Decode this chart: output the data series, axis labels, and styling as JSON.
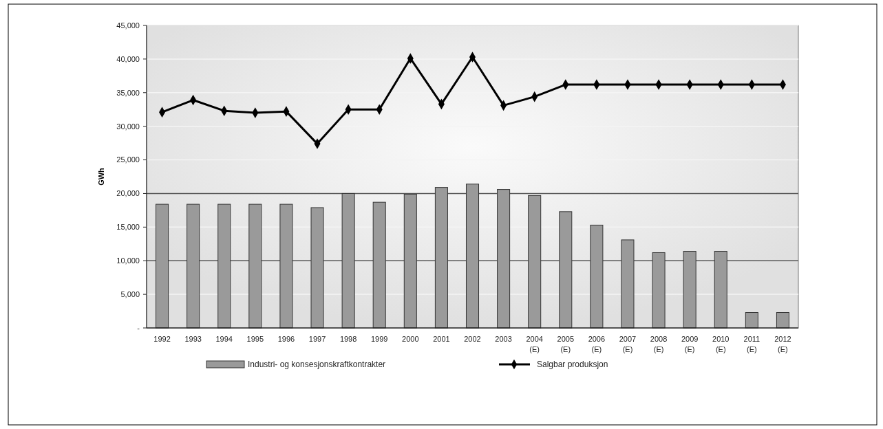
{
  "chart_data": {
    "type": "bar",
    "ylabel": "GWh",
    "categories": [
      "1992",
      "1993",
      "1994",
      "1995",
      "1996",
      "1997",
      "1998",
      "1999",
      "2000",
      "2001",
      "2002",
      "2003",
      "2004\n(E)",
      "2005\n(E)",
      "2006\n(E)",
      "2007\n(E)",
      "2008\n(E)",
      "2009\n(E)",
      "2010\n(E)",
      "2011\n(E)",
      "2012\n(E)"
    ],
    "series": [
      {
        "name": "Industri- og konsesjonskraftkontrakter",
        "color": "#9a9a9a",
        "values": [
          18400,
          18400,
          18400,
          18400,
          18400,
          17900,
          20000,
          18700,
          19900,
          20900,
          21400,
          20600,
          19700,
          17300,
          15300,
          13100,
          11200,
          11400,
          11400,
          2300,
          2300
        ]
      },
      {
        "name": "Salgbar produksjon",
        "type": "line",
        "color": "#000000",
        "marker": "diamond",
        "values": [
          32100,
          33900,
          32300,
          32000,
          32200,
          27400,
          32500,
          32500,
          40100,
          33300,
          40300,
          33100,
          34400,
          36200,
          36200,
          36200,
          36200,
          36200,
          36200,
          36200,
          36200
        ]
      }
    ],
    "ylim": [
      0,
      45000
    ],
    "yticks": [
      {
        "value": 0,
        "label": "-"
      },
      {
        "value": 5000,
        "label": "5,000"
      },
      {
        "value": 10000,
        "label": "10,000"
      },
      {
        "value": 15000,
        "label": "15,000"
      },
      {
        "value": 20000,
        "label": "20,000"
      },
      {
        "value": 25000,
        "label": "25,000"
      },
      {
        "value": 30000,
        "label": "30,000"
      },
      {
        "value": 35000,
        "label": "35,000"
      },
      {
        "value": 40000,
        "label": "40,000"
      },
      {
        "value": 45000,
        "label": "45,000"
      }
    ],
    "grid": "y",
    "legend": "bottom"
  }
}
